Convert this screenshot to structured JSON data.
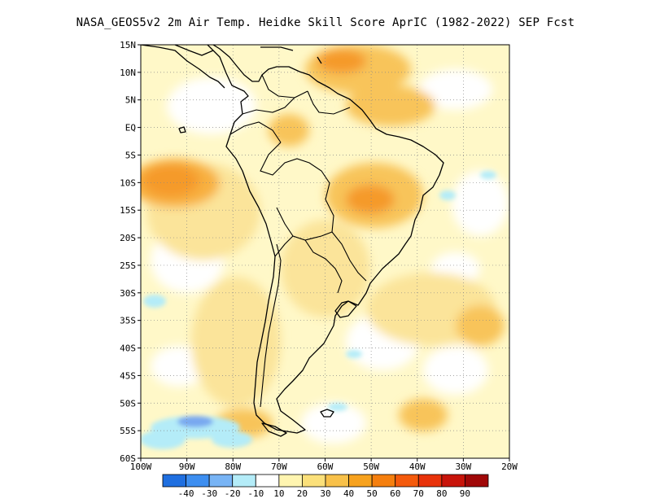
{
  "title": "NASA_GEOS5v2  2m Air Temp. Heidke Skill Score AprIC (1982-2022) SEP Fcst",
  "map": {
    "lat_labels": [
      "15N",
      "10N",
      "5N",
      "EQ",
      "5S",
      "10S",
      "15S",
      "20S",
      "25S",
      "30S",
      "35S",
      "40S",
      "45S",
      "50S",
      "55S",
      "60S"
    ],
    "lon_labels": [
      "100W",
      "90W",
      "80W",
      "70W",
      "60W",
      "50W",
      "40W",
      "30W",
      "20W"
    ],
    "lat_range": [
      -60,
      15
    ],
    "lon_range": [
      -100,
      -20
    ],
    "gridlines": "dotted",
    "coastline_color": "#000000"
  },
  "colorbar": {
    "colors": [
      "#1f6fe0",
      "#3d8ef0",
      "#78b4f5",
      "#b4ecf8",
      "#ffffff",
      "#fff5b0",
      "#fbe07a",
      "#f8c14a",
      "#f7a21e",
      "#f57f0e",
      "#f45a0c",
      "#e8320a",
      "#c8140a",
      "#a00808"
    ],
    "labels": [
      "-40",
      "-30",
      "-20",
      "-10",
      "10",
      "20",
      "30",
      "40",
      "50",
      "60",
      "70",
      "80",
      "90"
    ]
  }
}
